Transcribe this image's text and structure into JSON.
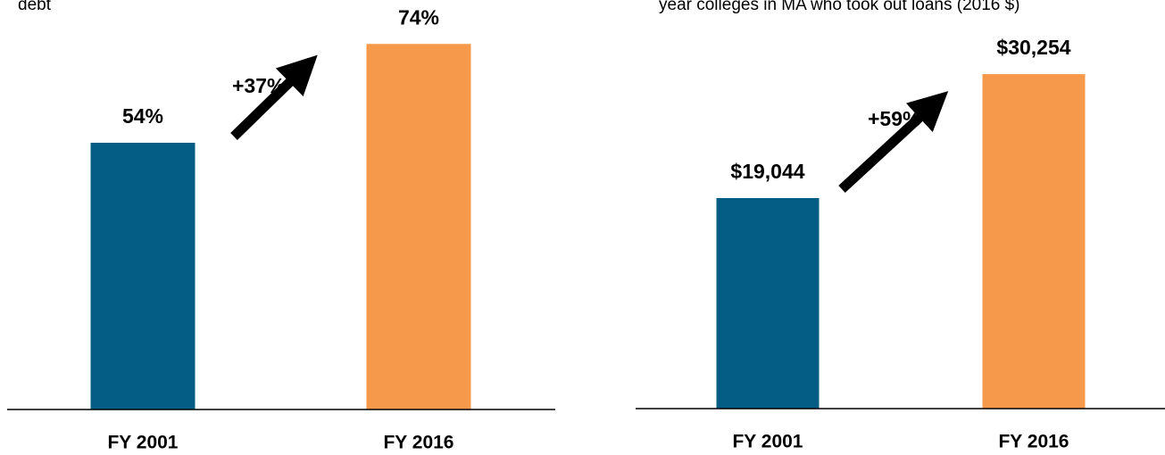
{
  "chart_data": [
    {
      "type": "bar",
      "title": "debt",
      "categories": [
        "FY 2001",
        "FY 2016"
      ],
      "values": [
        54,
        74
      ],
      "value_labels": [
        "54%",
        "74%"
      ],
      "colors": [
        "#045d85",
        "#f7994a"
      ],
      "annotation": "+37%"
    },
    {
      "type": "bar",
      "title": "year colleges in MA who took out loans (2016 $)",
      "categories": [
        "FY 2001",
        "FY 2016"
      ],
      "values": [
        19044,
        30254
      ],
      "value_labels": [
        "$19,044",
        "$30,254"
      ],
      "colors": [
        "#045d85",
        "#f7994a"
      ],
      "annotation": "+59%"
    }
  ]
}
